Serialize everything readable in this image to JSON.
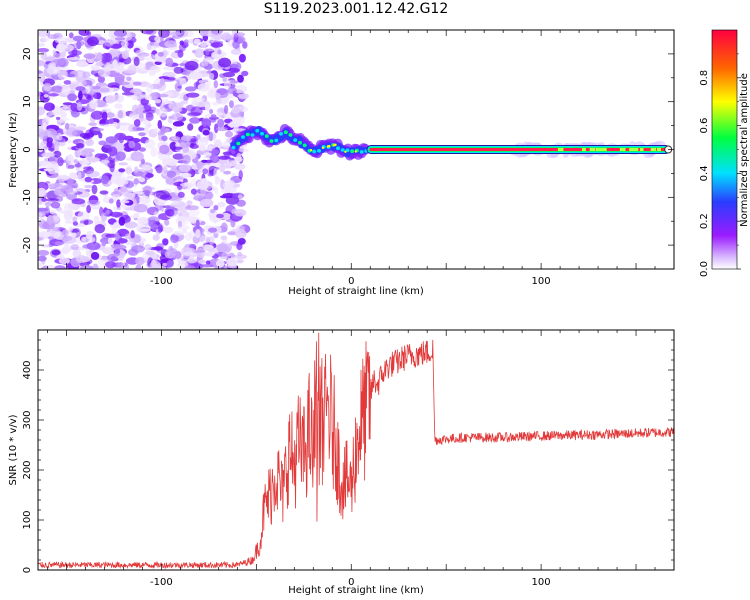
{
  "figure": {
    "title": "S119.2023.001.12.42.G12"
  },
  "chart_data": [
    {
      "type": "heatmap",
      "xlabel": "Height of straight line (km)",
      "ylabel": "Frequency (Hz)",
      "xlim": [
        -165,
        170
      ],
      "ylim": [
        -25,
        25
      ],
      "xticks": [
        -100,
        0,
        100
      ],
      "yticks": [
        -20,
        -10,
        0,
        10,
        20
      ],
      "grid": false,
      "colorbar": {
        "label": "Normalized spectral amplitude",
        "range": [
          0,
          1
        ],
        "ticks": [
          "0.0",
          "0.2",
          "0.4",
          "0.6",
          "0.8"
        ],
        "colors": [
          "#ffffff",
          "#9b1cff",
          "#2a3cff",
          "#00e0ff",
          "#00ff40",
          "#ffff00",
          "#ff6600",
          "#ff0040"
        ]
      },
      "regions": [
        {
          "x_range": [
            -165,
            -60
          ],
          "freq_range": [
            -25,
            25
          ],
          "amplitude": 0.15
        },
        {
          "x_range": [
            -60,
            8
          ],
          "freq_range": [
            -5,
            8
          ],
          "amplitude": 0.3
        },
        {
          "x_range": [
            8,
            168
          ],
          "freq_range": [
            0,
            0
          ],
          "amplitude": 0.9
        }
      ],
      "ridge": [
        {
          "x": -62,
          "f": 0.5
        },
        {
          "x": -55,
          "f": 3.0
        },
        {
          "x": -48,
          "f": 4.0
        },
        {
          "x": -42,
          "f": 1.5
        },
        {
          "x": -35,
          "f": 3.5
        },
        {
          "x": -28,
          "f": 2.0
        },
        {
          "x": -20,
          "f": -0.5
        },
        {
          "x": -14,
          "f": 0.5
        },
        {
          "x": -8,
          "f": 1.0
        },
        {
          "x": -4,
          "f": -0.5
        },
        {
          "x": 3,
          "f": -0.4
        },
        {
          "x": 8,
          "f": 0.0
        }
      ]
    },
    {
      "type": "line",
      "xlabel": "Height of straight line (km)",
      "ylabel": "SNR (10 * v/v)",
      "xlim": [
        -165,
        170
      ],
      "ylim": [
        0,
        480
      ],
      "xticks": [
        -100,
        0,
        100
      ],
      "yticks": [
        0,
        100,
        200,
        300,
        400
      ],
      "grid": false,
      "line_color": "#e23a3a",
      "series": [
        {
          "x": [
            -165,
            -120,
            -80,
            -60,
            -52,
            -48,
            -46,
            -42,
            -40,
            -36,
            -33,
            -30,
            -28,
            -25,
            -22,
            -20,
            -18,
            -16,
            -14,
            -12,
            -10,
            -8,
            -6,
            -4,
            -2,
            0,
            2,
            4,
            6,
            8,
            10,
            12,
            14,
            16,
            18,
            20,
            24,
            28,
            32,
            36,
            40,
            43,
            44,
            45,
            50,
            60,
            80,
            100,
            120,
            140,
            160,
            170
          ],
          "values": [
            10,
            10,
            10,
            10,
            20,
            55,
            120,
            160,
            200,
            150,
            240,
            210,
            250,
            230,
            280,
            220,
            300,
            310,
            290,
            330,
            280,
            260,
            190,
            175,
            180,
            165,
            230,
            280,
            300,
            320,
            350,
            380,
            370,
            390,
            400,
            410,
            415,
            425,
            430,
            432,
            435,
            440,
            260,
            260,
            262,
            265,
            265,
            268,
            270,
            272,
            275,
            276
          ]
        }
      ]
    }
  ]
}
